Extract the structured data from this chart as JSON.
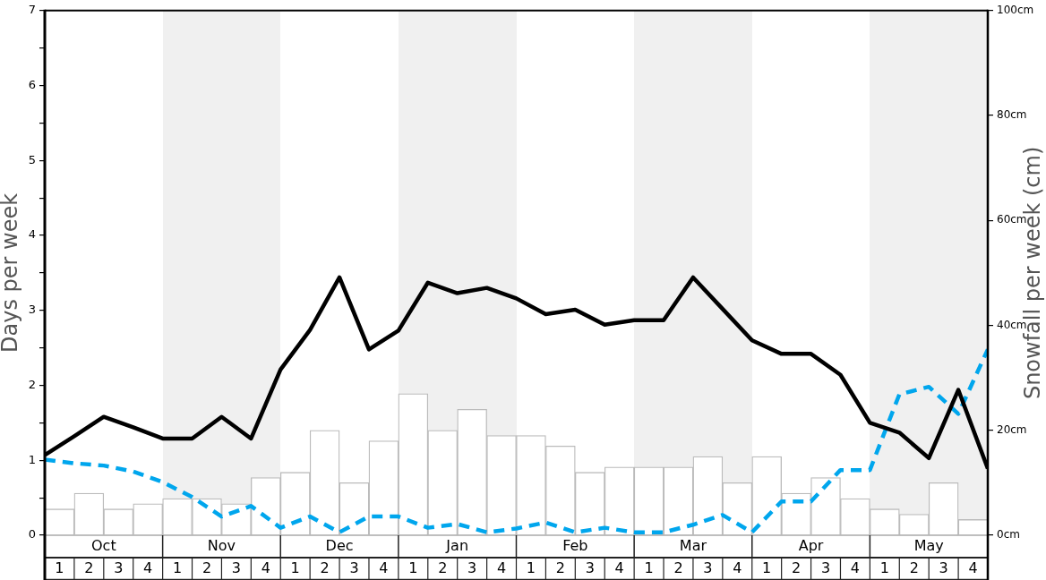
{
  "chart_data": {
    "type": "bar",
    "ylabel": "Days per week",
    "y2label": "Snowfall per week (cm)",
    "categories": [
      null,
      "1",
      null,
      "2",
      null,
      "3",
      null,
      "4",
      null,
      "1",
      null,
      "2",
      null,
      "3",
      null,
      "4",
      null,
      "1",
      null,
      "2",
      null,
      "3",
      null,
      "4",
      null,
      "1",
      null,
      "2",
      null,
      "3",
      null,
      "4",
      null,
      "1",
      null,
      "2",
      null,
      "3",
      null,
      "4",
      null,
      "1",
      null,
      "2",
      null,
      "3",
      null,
      "4",
      null,
      "1",
      null,
      "2",
      null,
      "3",
      null,
      "4",
      null,
      "1",
      null,
      "2",
      null,
      "3",
      null,
      "4",
      null
    ],
    "annotations": [
      "Oct",
      "Nov",
      "Dec",
      "Jan",
      "Feb",
      "Mar",
      "Apr",
      "May"
    ],
    "ylim": [
      0,
      7
    ],
    "yticks": [
      0,
      {
        "value": 0.5,
        "label": null
      },
      1,
      {
        "value": 1.5,
        "label": null
      },
      2,
      {
        "value": 2.5,
        "label": null
      },
      3,
      {
        "value": 3.5,
        "label": null
      },
      4,
      {
        "value": 4.5,
        "label": null
      },
      5,
      {
        "value": 5.5,
        "label": null
      },
      6,
      {
        "value": 6.5,
        "label": null
      },
      7
    ],
    "y2lim": [
      0,
      100
    ],
    "y2ticks": [
      {
        "value": 0,
        "label": "0cm"
      },
      {
        "value": 20,
        "label": "20cm"
      },
      {
        "value": 40,
        "label": "40cm"
      },
      {
        "value": 60,
        "label": "60cm"
      },
      {
        "value": 80,
        "label": "80cm"
      },
      {
        "value": 100,
        "label": "100cm"
      }
    ],
    "marker": "none",
    "series": [
      {
        "axis": "y2",
        "color": "#ffffff",
        "values": [
          null,
          5,
          null,
          8,
          null,
          5,
          null,
          6,
          null,
          7,
          null,
          7,
          null,
          6,
          null,
          11,
          null,
          12,
          null,
          20,
          null,
          10,
          null,
          18,
          null,
          27,
          null,
          20,
          null,
          24,
          null,
          19,
          null,
          19,
          null,
          17,
          null,
          12,
          null,
          13,
          null,
          13,
          null,
          13,
          null,
          15,
          null,
          10,
          null,
          15,
          null,
          8,
          null,
          11,
          null,
          7,
          null,
          5,
          null,
          4,
          null,
          10,
          null,
          3,
          null
        ]
      },
      {
        "type": "line",
        "color": "#000000",
        "line_style": "solid",
        "values": [
          1.07,
          null,
          1.32,
          null,
          1.58,
          null,
          1.44,
          null,
          1.29,
          null,
          1.29,
          null,
          1.58,
          null,
          1.29,
          null,
          2.21,
          null,
          2.74,
          null,
          3.44,
          null,
          2.48,
          null,
          2.73,
          null,
          3.37,
          null,
          3.23,
          null,
          3.3,
          null,
          3.16,
          null,
          2.95,
          null,
          3.01,
          null,
          2.81,
          null,
          2.87,
          null,
          2.87,
          null,
          3.44,
          null,
          3.02,
          null,
          2.6,
          null,
          2.42,
          null,
          2.42,
          null,
          2.14,
          null,
          1.5,
          null,
          1.37,
          null,
          1.03,
          null,
          1.94,
          null,
          0.89
        ]
      },
      {
        "type": "line",
        "color": "#00a6ed",
        "line_style": "dashed",
        "values": [
          1.01,
          null,
          0.96,
          null,
          0.93,
          null,
          0.85,
          null,
          0.71,
          null,
          0.51,
          null,
          0.25,
          null,
          0.39,
          null,
          0.1,
          null,
          0.25,
          null,
          0.04,
          null,
          0.25,
          null,
          0.25,
          null,
          0.1,
          null,
          0.15,
          null,
          0.04,
          null,
          0.09,
          null,
          0.17,
          null,
          0.04,
          null,
          0.1,
          null,
          0.04,
          null,
          0.04,
          null,
          0.14,
          null,
          0.27,
          null,
          0.04,
          null,
          0.45,
          null,
          0.45,
          null,
          0.87,
          null,
          0.87,
          null,
          1.88,
          null,
          1.98,
          null,
          1.62,
          null,
          2.48
        ]
      }
    ]
  }
}
